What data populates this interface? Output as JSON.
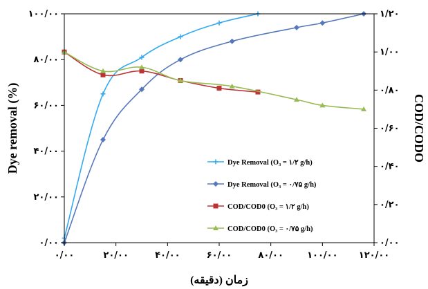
{
  "chart_data": {
    "type": "line",
    "xlabel": "زمان (دقیقه)",
    "ylabel_left": "Dye removal (%)",
    "ylabel_right": "COD/CODO",
    "x_ticks": [
      "۰/۰۰",
      "۲۰/۰۰",
      "۴۰/۰۰",
      "۶۰/۰۰",
      "۸۰/۰۰",
      "۱۰۰/۰۰",
      "۱۲۰/۰۰"
    ],
    "y_left_ticks": [
      "۰/۰۰",
      "۲۰/۰۰",
      "۴۰/۰۰",
      "۶۰/۰۰",
      "۸۰/۰۰",
      "۱۰۰/۰۰"
    ],
    "y_right_ticks": [
      "۰/۰۰",
      "۰/۲۰",
      "۰/۴۰",
      "۰/۶۰",
      "۰/۸۰",
      "۱/۰۰",
      "۱/۲۰"
    ],
    "xlim": [
      0,
      120
    ],
    "ylim_left": [
      0,
      100
    ],
    "ylim_right": [
      0,
      1.2
    ],
    "grid": false,
    "legend_position": "bottom-right inside plot",
    "series": [
      {
        "name": "Dye Removal (O₃ = ۱/۲ g/h)",
        "axis": "left",
        "color": "#33aaee",
        "marker": "plus",
        "x": [
          0,
          15,
          30,
          45,
          60,
          75
        ],
        "y": [
          2,
          65,
          81,
          90,
          96,
          100
        ]
      },
      {
        "name": "Dye Removal (O₃ = ۰/۷۵ g/h)",
        "axis": "left",
        "color": "#5577bb",
        "marker": "diamond",
        "x": [
          0,
          15,
          30,
          45,
          65,
          90,
          100,
          116
        ],
        "y": [
          0,
          45,
          67,
          80,
          88,
          94,
          96,
          100
        ]
      },
      {
        "name": "COD/COD0 (O₃ = ۱/۲ g/h)",
        "axis": "right",
        "color": "#bb3333",
        "marker": "square",
        "x": [
          0,
          15,
          30,
          45,
          60,
          75
        ],
        "y": [
          1.0,
          0.88,
          0.9,
          0.85,
          0.81,
          0.79
        ]
      },
      {
        "name": "COD/COD0 (O₃ = ۰/۷۵ g/h)",
        "axis": "right",
        "color": "#99bb55",
        "marker": "triangle",
        "x": [
          0,
          15,
          30,
          45,
          65,
          90,
          100,
          116
        ],
        "y": [
          1.0,
          0.9,
          0.92,
          0.85,
          0.82,
          0.75,
          0.72,
          0.7
        ]
      }
    ]
  }
}
